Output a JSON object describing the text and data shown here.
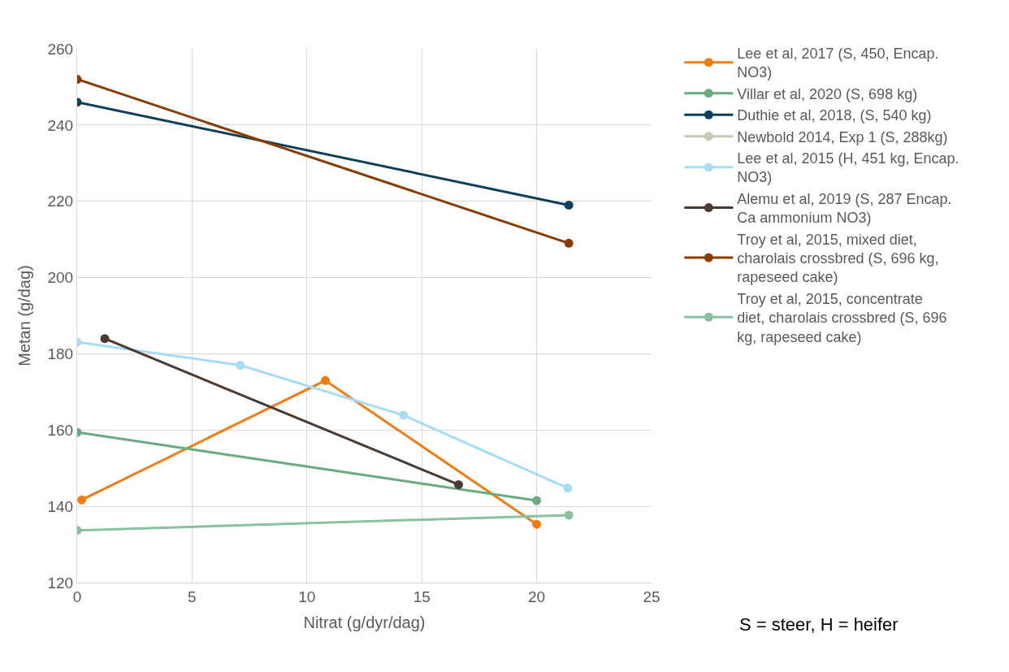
{
  "chart_data": {
    "type": "line",
    "xlabel": "Nitrat (g/dyr/dag)",
    "ylabel": "Metan (g/dag)",
    "xlim": [
      0,
      25
    ],
    "xticks": [
      0,
      5,
      10,
      15,
      20,
      25
    ],
    "ylim": [
      120,
      260
    ],
    "yticks": [
      120,
      140,
      160,
      180,
      200,
      220,
      240,
      260
    ],
    "grid": true,
    "legend": "right",
    "marker": "circle",
    "series": [
      {
        "name": "Lee et al, 2017 (S, 450, Encap. NO3)",
        "color": "#f07c16",
        "x": [
          0.2,
          10.8,
          20.0
        ],
        "values": [
          141.7,
          173,
          135.3
        ]
      },
      {
        "name": "Villar et al, 2020 (S, 698 kg)",
        "color": "#6aaa80",
        "x": [
          0,
          20.0
        ],
        "values": [
          159.4,
          141.5
        ]
      },
      {
        "name": "Duthie et al, 2018, (S, 540 kg)",
        "color": "#0e3f5a",
        "x": [
          0,
          21.4
        ],
        "values": [
          246,
          219
        ]
      },
      {
        "name": "Newbold 2014, Exp 1 (S, 288kg)",
        "color": "#c9c9b6"
      },
      {
        "name": "Lee et al, 2015 (H, 451 kg, Encap. NO3)",
        "color": "#a6dcf5",
        "x": [
          0,
          7.1,
          14.2,
          21.35
        ],
        "values": [
          183.1,
          177,
          163.9,
          144.8
        ]
      },
      {
        "name": "Alemu et al, 2019 (S, 287 Encap. Ca ammonium NO3)",
        "color": "#4a3a2f",
        "x": [
          1.2,
          16.6
        ],
        "values": [
          184,
          145.7
        ]
      },
      {
        "name": "Troy et al, 2015, mixed diet, charolais crossbred (S, 696 kg, rapeseed cake)",
        "color": "#8b3c05",
        "x": [
          0,
          21.4
        ],
        "values": [
          252,
          209
        ]
      },
      {
        "name": "Troy et al, 2015, concentrate diet, charolais crossbred (S, 696 kg, rapeseed cake)",
        "color": "#88c0a0",
        "x": [
          0,
          21.4
        ],
        "values": [
          133.7,
          137.7
        ]
      }
    ],
    "annotations": [
      "S = steer, H = heifer"
    ]
  }
}
